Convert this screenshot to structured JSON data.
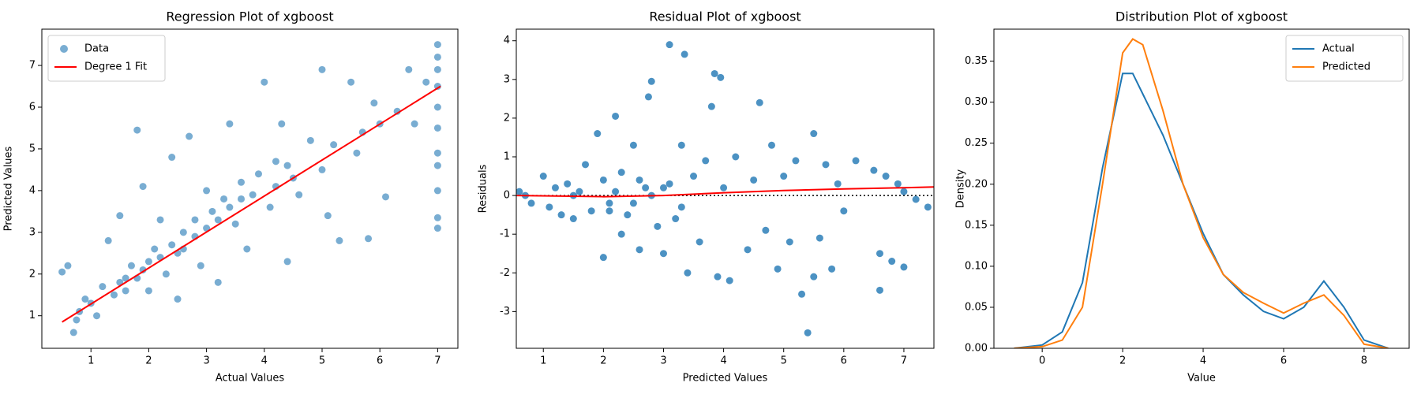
{
  "chart_data": [
    {
      "type": "scatter",
      "title": "Regression Plot of xgboost",
      "x_label": "Actual Values",
      "y_label": "Predicted Values",
      "xlim": [
        0.15,
        7.35
      ],
      "ylim": [
        0.22,
        7.87
      ],
      "xticks": [
        1,
        2,
        3,
        4,
        5,
        6,
        7
      ],
      "yticks": [
        1,
        2,
        3,
        4,
        5,
        6,
        7
      ],
      "legend": "upper left",
      "series": [
        {
          "name": "Data",
          "color": "#1f77b4",
          "opacity": 0.6,
          "style": "points",
          "x": [
            0.5,
            0.6,
            0.7,
            0.75,
            0.8,
            0.9,
            1.0,
            1.1,
            1.2,
            1.3,
            1.4,
            1.5,
            1.5,
            1.6,
            1.7,
            1.8,
            1.8,
            1.9,
            2.0,
            2.0,
            2.1,
            2.2,
            2.3,
            2.4,
            2.5,
            2.5,
            2.6,
            2.7,
            2.8,
            2.9,
            3.0,
            3.0,
            3.1,
            3.2,
            3.3,
            3.4,
            3.5,
            3.6,
            3.7,
            3.8,
            3.9,
            4.0,
            4.1,
            4.2,
            4.3,
            4.4,
            4.5,
            4.6,
            4.8,
            5.0,
            5.0,
            5.1,
            5.2,
            5.3,
            5.5,
            5.6,
            5.7,
            5.8,
            5.9,
            6.0,
            6.1,
            6.3,
            6.5,
            6.6,
            6.8,
            7.0,
            7.0,
            7.0,
            7.0,
            7.0,
            7.0,
            7.0,
            7.0,
            7.0,
            7.0,
            7.0,
            1.6,
            1.9,
            2.2,
            2.4,
            2.6,
            2.8,
            3.2,
            3.4,
            3.6,
            4.2,
            4.4
          ],
          "y": [
            2.05,
            2.2,
            0.6,
            0.9,
            1.1,
            1.4,
            1.3,
            1.0,
            1.7,
            2.8,
            1.5,
            1.8,
            3.4,
            1.6,
            2.2,
            5.45,
            1.9,
            4.1,
            2.3,
            1.6,
            2.6,
            3.3,
            2.0,
            4.8,
            2.5,
            1.4,
            3.0,
            5.3,
            2.9,
            2.2,
            3.1,
            4.0,
            3.5,
            1.8,
            3.8,
            5.6,
            3.2,
            4.2,
            2.6,
            3.9,
            4.4,
            6.6,
            3.6,
            4.7,
            5.6,
            2.3,
            4.3,
            3.9,
            5.2,
            6.9,
            4.5,
            3.4,
            5.1,
            2.8,
            6.6,
            4.9,
            5.4,
            2.85,
            6.1,
            5.6,
            3.85,
            5.9,
            6.9,
            5.6,
            6.6,
            7.5,
            7.2,
            6.9,
            6.5,
            6.0,
            5.5,
            4.9,
            4.6,
            4.0,
            3.35,
            3.1,
            1.9,
            2.1,
            2.4,
            2.7,
            2.6,
            3.3,
            3.3,
            3.6,
            3.8,
            4.1,
            4.6
          ]
        },
        {
          "name": "Degree 1 Fit",
          "color": "#ff0000",
          "style": "line",
          "x": [
            0.5,
            7.05
          ],
          "y": [
            0.85,
            6.5
          ]
        }
      ]
    },
    {
      "type": "scatter",
      "title": "Residual Plot of xgboost",
      "x_label": "Predicted Values",
      "y_label": "Residuals",
      "xlim": [
        0.55,
        7.5
      ],
      "ylim": [
        -3.95,
        4.3
      ],
      "xticks": [
        1,
        2,
        3,
        4,
        5,
        6,
        7
      ],
      "yticks": [
        -3,
        -2,
        -1,
        0,
        1,
        2,
        3,
        4
      ],
      "reference_line": {
        "y": 0,
        "style": "dotted",
        "color": "#000000"
      },
      "series": [
        {
          "color": "#1f77b4",
          "opacity": 0.8,
          "style": "points",
          "x": [
            0.6,
            0.7,
            0.8,
            1.0,
            1.1,
            1.2,
            1.3,
            1.4,
            1.5,
            1.6,
            1.7,
            1.8,
            1.9,
            2.0,
            2.0,
            2.1,
            2.2,
            2.3,
            2.3,
            2.4,
            2.5,
            2.6,
            2.7,
            2.75,
            2.8,
            2.9,
            3.0,
            3.1,
            3.1,
            3.2,
            3.3,
            3.35,
            3.4,
            3.5,
            3.6,
            3.7,
            3.8,
            3.85,
            3.9,
            3.95,
            4.0,
            4.1,
            4.2,
            4.4,
            4.5,
            4.6,
            4.7,
            4.8,
            4.9,
            5.0,
            5.1,
            5.2,
            5.3,
            5.4,
            5.5,
            5.5,
            5.6,
            5.7,
            5.8,
            5.9,
            6.0,
            6.2,
            6.5,
            6.6,
            6.6,
            6.7,
            6.8,
            6.9,
            7.0,
            7.0,
            7.2,
            7.4,
            1.5,
            2.2,
            2.5,
            2.8,
            3.0,
            3.3,
            2.6,
            2.1
          ],
          "y": [
            0.1,
            0.0,
            -0.2,
            0.5,
            -0.3,
            0.2,
            -0.5,
            0.3,
            -0.6,
            0.1,
            0.8,
            -0.4,
            1.6,
            -1.6,
            0.4,
            -0.2,
            2.05,
            -1.0,
            0.6,
            -0.5,
            1.3,
            -1.4,
            0.2,
            2.55,
            2.95,
            -0.8,
            -1.5,
            3.9,
            0.3,
            -0.6,
            1.3,
            3.65,
            -2.0,
            0.5,
            -1.2,
            0.9,
            2.3,
            3.15,
            -2.1,
            3.05,
            0.2,
            -2.2,
            1.0,
            -1.4,
            0.4,
            2.4,
            -0.9,
            1.3,
            -1.9,
            0.5,
            -1.2,
            0.9,
            -2.55,
            -3.55,
            1.6,
            -2.1,
            -1.1,
            0.8,
            -1.9,
            0.3,
            -0.4,
            0.9,
            0.65,
            -1.5,
            -2.45,
            0.5,
            -1.7,
            0.3,
            -1.85,
            0.1,
            -0.1,
            -0.3,
            0.0,
            0.1,
            -0.2,
            0.0,
            0.2,
            -0.3,
            0.4,
            -0.4
          ]
        },
        {
          "color": "#ff0000",
          "style": "line",
          "x": [
            0.55,
            2,
            3,
            4,
            5,
            6,
            7,
            7.5
          ],
          "y": [
            0,
            -0.03,
            0,
            0.07,
            0.13,
            0.17,
            0.2,
            0.22
          ]
        }
      ]
    },
    {
      "type": "line",
      "title": "Distribution Plot of xgboost",
      "x_label": "Value",
      "y_label": "Density",
      "xlim": [
        -1.2,
        9.12
      ],
      "ylim": [
        0,
        0.389
      ],
      "xticks": [
        0,
        2,
        4,
        6,
        8
      ],
      "yticks": [
        {
          "value": 0,
          "label": "0.00"
        },
        {
          "value": 0.05,
          "label": "0.05"
        },
        {
          "value": 0.1,
          "label": "0.10"
        },
        {
          "value": 0.15,
          "label": "0.15"
        },
        {
          "value": 0.2,
          "label": "0.20"
        },
        {
          "value": 0.25,
          "label": "0.25"
        },
        {
          "value": 0.3,
          "label": "0.30"
        },
        {
          "value": 0.35,
          "label": "0.35"
        }
      ],
      "legend": "upper right",
      "series": [
        {
          "name": "Actual",
          "color": "#1f77b4",
          "style": "line",
          "x": [
            -0.7,
            0,
            0.5,
            1,
            1.5,
            2,
            2.25,
            2.5,
            3,
            3.5,
            4,
            4.5,
            5,
            5.5,
            6,
            6.5,
            7,
            7.5,
            8,
            8.6
          ],
          "y": [
            0,
            0.004,
            0.02,
            0.08,
            0.22,
            0.335,
            0.335,
            0.31,
            0.26,
            0.2,
            0.14,
            0.09,
            0.065,
            0.045,
            0.036,
            0.05,
            0.082,
            0.05,
            0.01,
            0
          ]
        },
        {
          "name": "Predicted",
          "color": "#ff7f0e",
          "style": "line",
          "x": [
            -0.7,
            0,
            0.5,
            1,
            1.5,
            2,
            2.25,
            2.5,
            3,
            3.5,
            4,
            4.5,
            5,
            5.5,
            6,
            6.5,
            7,
            7.5,
            8,
            8.6
          ],
          "y": [
            0,
            0.002,
            0.01,
            0.05,
            0.2,
            0.36,
            0.377,
            0.37,
            0.29,
            0.2,
            0.135,
            0.09,
            0.068,
            0.055,
            0.043,
            0.055,
            0.065,
            0.04,
            0.005,
            0
          ]
        }
      ]
    }
  ]
}
